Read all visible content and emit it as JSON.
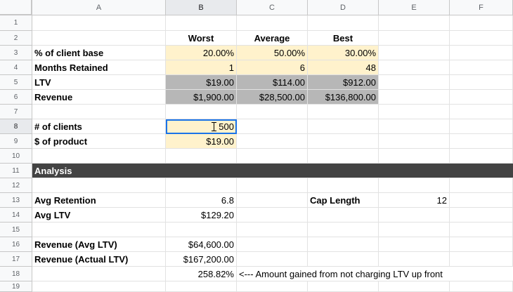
{
  "columns": [
    "A",
    "B",
    "C",
    "D",
    "E",
    "F"
  ],
  "rows": [
    "1",
    "2",
    "3",
    "4",
    "5",
    "6",
    "7",
    "8",
    "9",
    "10",
    "11",
    "12",
    "13",
    "14",
    "15",
    "16",
    "17",
    "18",
    "19"
  ],
  "scenario_headers": {
    "worst": "Worst",
    "average": "Average",
    "best": "Best"
  },
  "labels": {
    "pct_client_base": "% of client base",
    "months_retained": "Months Retained",
    "ltv": "LTV",
    "revenue": "Revenue",
    "num_clients": "# of clients",
    "dollar_product": "$ of product",
    "analysis": "Analysis",
    "avg_retention": "Avg Retention",
    "avg_ltv": "Avg LTV",
    "cap_length": "Cap Length",
    "revenue_avg_ltv": "Revenue (Avg LTV)",
    "revenue_actual_ltv": "Revenue (Actual LTV)"
  },
  "values": {
    "pct_client_base": [
      "20.00%",
      "50.00%",
      "30.00%"
    ],
    "months_retained": [
      "1",
      "6",
      "48"
    ],
    "ltv": [
      "$19.00",
      "$114.00",
      "$912.00"
    ],
    "revenue": [
      "$1,900.00",
      "$28,500.00",
      "$136,800.00"
    ],
    "num_clients": "500",
    "dollar_product": "$19.00",
    "avg_retention": "6.8",
    "avg_ltv": "$129.20",
    "cap_length": "12",
    "revenue_avg_ltv": "$64,600.00",
    "revenue_actual_ltv": "$167,200.00",
    "gain_pct": "258.82%",
    "gain_note": "<--- Amount gained from not charging LTV up front"
  },
  "colors": {
    "input_yellow": "#fff2cc",
    "computed_gray": "#b7b7b7",
    "section_dark": "#434343",
    "selection_blue": "#1a73e8"
  },
  "active_cell": "B8",
  "cursor_icon": "text-cursor-icon"
}
